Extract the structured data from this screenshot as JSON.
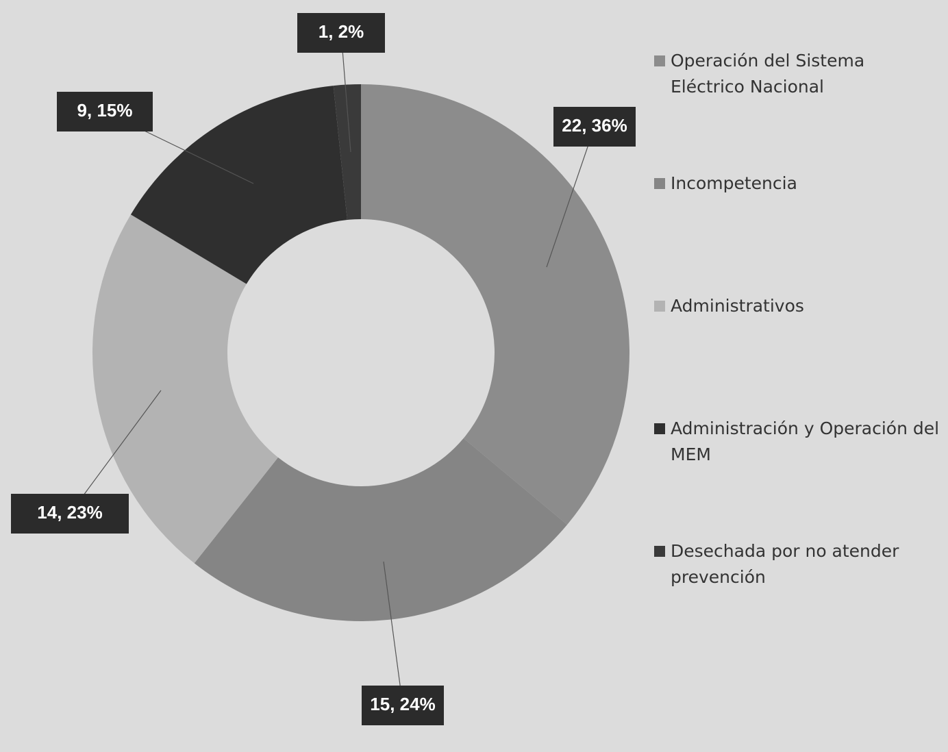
{
  "chart_data": {
    "type": "donut",
    "categories": [
      "Operación del Sistema Eléctrico Nacional",
      "Incompetencia",
      "Administrativos",
      "Administración y Operación del MEM",
      "Desechada por no atender prevención"
    ],
    "values": [
      22,
      15,
      14,
      9,
      1
    ],
    "value_labels": [
      "22, 36%",
      "15, 24%",
      "14, 23%",
      "9, 15%",
      "1, 2%"
    ],
    "colors": [
      "#8c8c8c",
      "#858585",
      "#b3b3b3",
      "#2f2f2f",
      "#3a3a3a"
    ]
  }
}
